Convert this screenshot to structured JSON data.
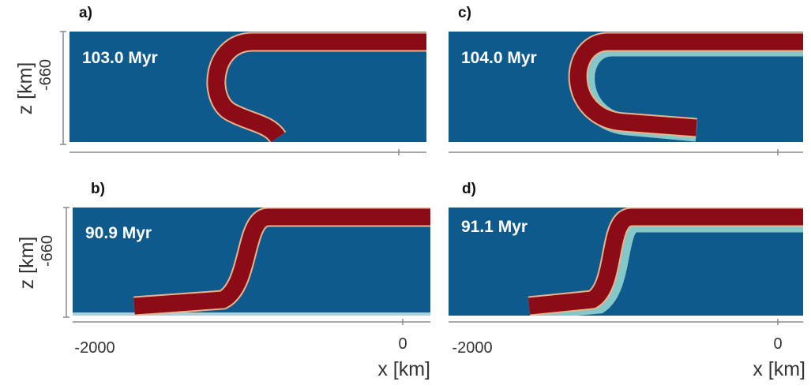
{
  "panels": [
    {
      "label": "a)",
      "time": "103.0 Myr"
    },
    {
      "label": "c)",
      "time": "104.0 Myr"
    },
    {
      "label": "b)",
      "time": "90.9 Myr"
    },
    {
      "label": "d)",
      "time": "91.1 Myr"
    }
  ],
  "y_axes": [
    {
      "label": "z [km]",
      "tick": "-660"
    },
    {
      "label": "z [km]",
      "tick": "-660"
    }
  ],
  "x_axes": [
    {
      "ticks": [
        "-2000",
        "0"
      ],
      "label": "x [km]"
    },
    {
      "ticks": [
        "-2000",
        "0"
      ],
      "label": "x [km]"
    }
  ]
}
